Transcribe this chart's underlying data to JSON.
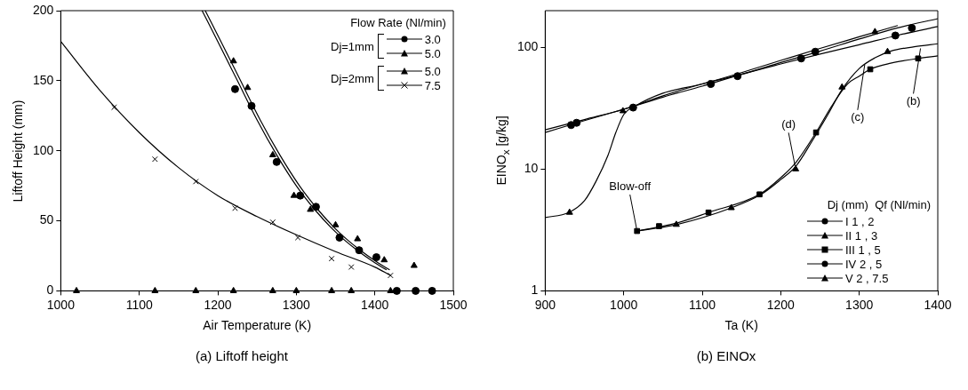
{
  "chart_data": [
    {
      "type": "scatter",
      "title": "(a) Liftoff height",
      "xlabel": "Air Temperature (K)",
      "ylabel": "Liftoff Height (mm)",
      "xlim": [
        1000,
        1500
      ],
      "xticks": [
        1000,
        1100,
        1200,
        1300,
        1400,
        1500
      ],
      "ylim": [
        0,
        200
      ],
      "yticks": [
        0,
        50,
        100,
        150,
        200
      ],
      "legend": "top right",
      "legend_title": "Flow Rate (Nl/min)",
      "annotations": [
        "Dj=1mm",
        "Dj=2mm"
      ],
      "series": [
        {
          "name": "3.0",
          "color": "#000000",
          "marker": "circle",
          "x": [
            1222,
            1243,
            1275,
            1305,
            1325,
            1355,
            1380,
            1402,
            1428,
            1452,
            1473
          ],
          "values": [
            144,
            132,
            92,
            68,
            60,
            38,
            29,
            24,
            0,
            0,
            0
          ]
        },
        {
          "name": "5.0",
          "color": "#000000",
          "marker": "triangle",
          "x": [
            1220,
            1238,
            1270,
            1297,
            1318,
            1350,
            1378,
            1412,
            1450
          ],
          "values": [
            164,
            145,
            97,
            68,
            58,
            47,
            37,
            22,
            18
          ]
        },
        {
          "name": "5.0",
          "color": "#000000",
          "marker": "triangle",
          "x": [
            1020,
            1120,
            1172,
            1220,
            1270,
            1300,
            1345,
            1370,
            1420
          ],
          "values": [
            0,
            0,
            0,
            0,
            0,
            0,
            0,
            0,
            0
          ]
        },
        {
          "name": "7.5",
          "color": "#000000",
          "marker": "cross",
          "x": [
            1068,
            1120,
            1172,
            1222,
            1270,
            1302,
            1345,
            1370,
            1420
          ],
          "values": [
            131,
            94,
            78,
            59,
            49,
            38,
            23,
            17,
            11
          ]
        },
        {
          "type": "line",
          "color": "#000000",
          "marker": "none",
          "x": [
            1180,
            1200,
            1225,
            1250,
            1275,
            1300,
            1325,
            1350,
            1375,
            1400,
            1415
          ],
          "values": [
            200,
            178,
            150,
            122,
            97,
            75,
            57,
            42,
            30,
            20,
            15
          ]
        },
        {
          "type": "line",
          "color": "#000000",
          "marker": "none",
          "x": [
            1184,
            1204,
            1229,
            1254,
            1279,
            1304,
            1329,
            1354,
            1379,
            1404,
            1419
          ],
          "values": [
            200,
            178,
            150,
            122,
            97,
            75,
            57,
            42,
            30,
            20,
            15
          ]
        },
        {
          "type": "line",
          "color": "#000000",
          "marker": "none",
          "x": [
            1000,
            1050,
            1100,
            1150,
            1200,
            1250,
            1300,
            1350,
            1400,
            1420
          ],
          "values": [
            178,
            143,
            113,
            88,
            68,
            53,
            40,
            28,
            17,
            11
          ]
        }
      ]
    },
    {
      "type": "scatter",
      "title": "(b) EINOx",
      "xlabel": "Ta (K)",
      "ylabel": "EINO$_{x}$ [g/kg]",
      "log": "y",
      "xlim": [
        900,
        1400
      ],
      "xticks": [
        900,
        1000,
        1100,
        1200,
        1300,
        1400
      ],
      "ylim": [
        1,
        200
      ],
      "yticks": [
        1,
        10,
        100
      ],
      "legend": "bottom right",
      "legend_title": "Dj (mm)  Qf (Nl/min)",
      "annotations": [
        {
          "text": "Blow-off",
          "x": 1017,
          "y": 3.1
        },
        {
          "text": "(d)",
          "x": 1219,
          "y": 10
        },
        {
          "text": "(c)",
          "x": 1307,
          "y": 72
        },
        {
          "text": "(b)",
          "x": 1378,
          "y": 98
        }
      ],
      "series": [
        {
          "name": "I 1 , 2",
          "color": "#000000",
          "marker": "circle",
          "x": [
            933,
            1012,
            1111,
            1226,
            1346
          ],
          "values": [
            23,
            32,
            50,
            81,
            125
          ]
        },
        {
          "name": "II 1 , 3",
          "color": "#000000",
          "marker": "triangle",
          "x": [
            1067,
            1137,
            1219,
            1278,
            1336
          ],
          "values": [
            3.5,
            4.8,
            10,
            47,
            92
          ]
        },
        {
          "name": "III 1 , 5",
          "color": "#000000",
          "marker": "square",
          "x": [
            1017,
            1045,
            1108,
            1173,
            1245,
            1314,
            1375
          ],
          "values": [
            3.1,
            3.4,
            4.4,
            6.2,
            20,
            66,
            81
          ]
        },
        {
          "name": "IV 2 , 5",
          "color": "#000000",
          "marker": "circle",
          "x": [
            940,
            1145,
            1244,
            1367
          ],
          "values": [
            24,
            58,
            92,
            144
          ]
        },
        {
          "name": "V 2 , 7.5",
          "color": "#000000",
          "marker": "triangle",
          "x": [
            931,
            999,
            1320
          ],
          "values": [
            4.4,
            30,
            134
          ]
        },
        {
          "type": "line",
          "color": "#000000",
          "marker": "none",
          "x": [
            900,
            950,
            1000,
            1050,
            1100,
            1150,
            1200,
            1250,
            1300,
            1350,
            1400
          ],
          "values": [
            20,
            25,
            31,
            39,
            48,
            60,
            73,
            88,
            105,
            126,
            148
          ]
        },
        {
          "type": "line",
          "color": "#000000",
          "marker": "none",
          "x": [
            900,
            950,
            1000,
            1050,
            1100,
            1150,
            1200,
            1250,
            1300,
            1350,
            1400
          ],
          "values": [
            21,
            25.5,
            31,
            40,
            50,
            60,
            75,
            93,
            117,
            145,
            172
          ]
        },
        {
          "type": "line",
          "color": "#000000",
          "marker": "none",
          "x": [
            900,
            930,
            950,
            965,
            980,
            990,
            1000,
            1015,
            1050,
            1100,
            1150,
            1200,
            1250,
            1300,
            1349
          ],
          "values": [
            4,
            4.4,
            5.5,
            8,
            13,
            20,
            28,
            33,
            42,
            50,
            62,
            78,
            98,
            122,
            151
          ]
        },
        {
          "type": "line",
          "color": "#000000",
          "marker": "none",
          "x": [
            1017,
            1067,
            1137,
            1175,
            1200,
            1219,
            1240,
            1260,
            1278,
            1300,
            1320,
            1340,
            1370,
            1400
          ],
          "values": [
            3.1,
            3.5,
            4.8,
            6.2,
            8.2,
            10.5,
            17,
            28,
            45,
            67,
            82,
            93,
            101,
            107
          ]
        },
        {
          "type": "line",
          "color": "#000000",
          "marker": "none",
          "x": [
            1017,
            1067,
            1108,
            1173,
            1200,
            1220,
            1245,
            1265,
            1285,
            1300,
            1314,
            1340,
            1375,
            1400
          ],
          "values": [
            3.1,
            3.6,
            4.4,
            6.2,
            8.5,
            11.5,
            20,
            33,
            50,
            58,
            66,
            74,
            81,
            85
          ]
        }
      ]
    }
  ]
}
